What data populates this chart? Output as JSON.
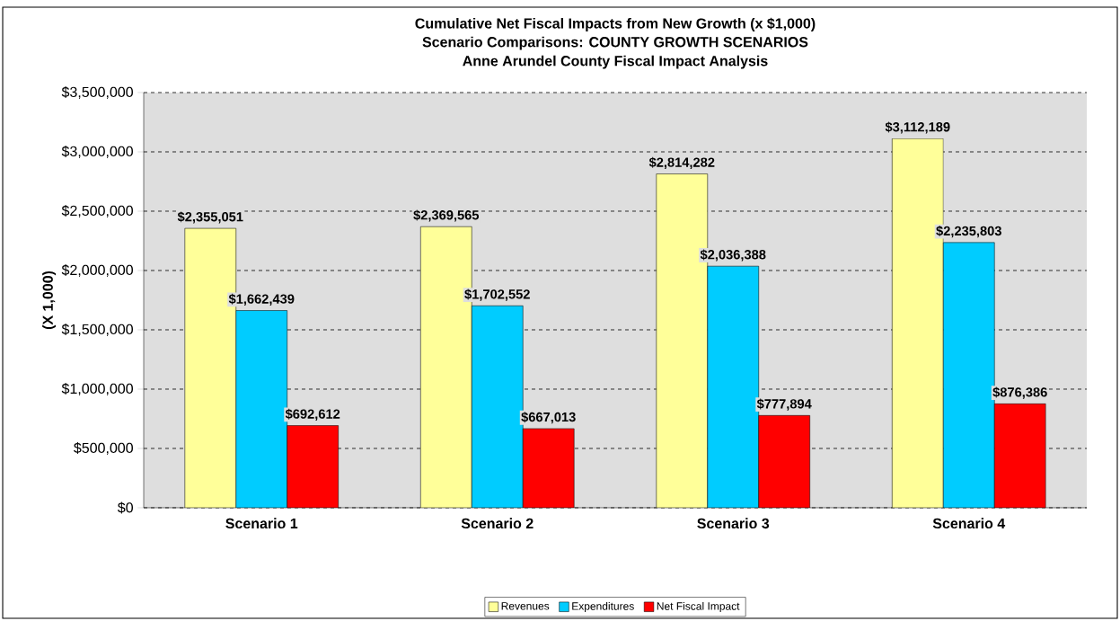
{
  "chart_data": {
    "type": "bar",
    "title": "Cumulative Net Fiscal Impacts from New Growth (x $1,000)",
    "subtitle": "Scenario Comparisons: COUNTY GROWTH SCENARIOS",
    "annotations": [
      "Anne Arundel County Fiscal Impact Analysis"
    ],
    "ylabel": "(X 1,000)",
    "categories": [
      "Scenario 1",
      "Scenario 2",
      "Scenario 3",
      "Scenario 4"
    ],
    "series": [
      {
        "name": "Revenues",
        "color": "#ffff99",
        "values": [
          2355051,
          2369565,
          2814282,
          3112189
        ],
        "value_labels": [
          "$2,355,051",
          "$2,369,565",
          "$2,814,282",
          "$3,112,189"
        ]
      },
      {
        "name": "Expenditures",
        "color": "#00ccff",
        "values": [
          1662439,
          1702552,
          2036388,
          2235803
        ],
        "value_labels": [
          "$1,662,439",
          "$1,702,552",
          "$2,036,388",
          "$2,235,803"
        ]
      },
      {
        "name": "Net Fiscal Impact",
        "color": "#ff0000",
        "values": [
          692612,
          667013,
          777894,
          876386
        ],
        "value_labels": [
          "$692,612",
          "$667,013",
          "$777,894",
          "$876,386"
        ]
      }
    ],
    "ylim": [
      0,
      3500000
    ],
    "yticks": [
      {
        "value": 0,
        "label": "$0"
      },
      {
        "value": 500000,
        "label": "$500,000"
      },
      {
        "value": 1000000,
        "label": "$1,000,000"
      },
      {
        "value": 1500000,
        "label": "$1,500,000"
      },
      {
        "value": 2000000,
        "label": "$2,000,000"
      },
      {
        "value": 2500000,
        "label": "$2,500,000"
      },
      {
        "value": 3000000,
        "label": "$3,000,000"
      },
      {
        "value": 3500000,
        "label": "$3,500,000"
      }
    ],
    "grid": "y",
    "legend": "bottom"
  }
}
